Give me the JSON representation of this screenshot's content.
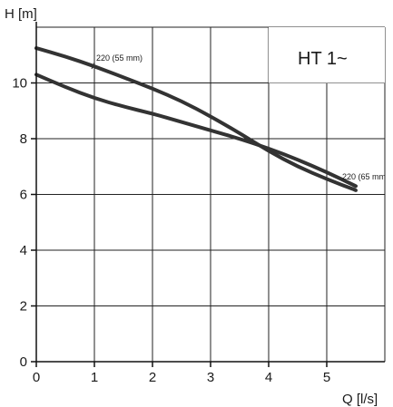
{
  "chart_data": {
    "type": "line",
    "title": "",
    "badge": "HT 1~",
    "xlabel": "Q [l/s]",
    "ylabel": "H [m]",
    "xlim": [
      0,
      6
    ],
    "ylim": [
      0,
      12
    ],
    "x_ticks": [
      0,
      1,
      2,
      3,
      4,
      5
    ],
    "y_ticks": [
      0,
      2,
      4,
      6,
      8,
      10
    ],
    "x_tick_labels": [
      "0",
      "1",
      "2",
      "3",
      "4",
      "5"
    ],
    "y_tick_labels": [
      "0",
      "2",
      "4",
      "6",
      "8",
      "10"
    ],
    "grid": true,
    "series": [
      {
        "name": "220 (55 mm)",
        "x": [
          0,
          0.5,
          1.0,
          1.5,
          2.0,
          2.5,
          3.0,
          3.5,
          4.0,
          4.5,
          5.0,
          5.5
        ],
        "y": [
          11.25,
          10.95,
          10.6,
          10.2,
          9.8,
          9.35,
          8.8,
          8.2,
          7.55,
          7.0,
          6.55,
          6.15
        ]
      },
      {
        "name": "220 (65 mm",
        "x": [
          0,
          0.5,
          1.0,
          1.5,
          2.0,
          2.5,
          3.0,
          3.5,
          4.0,
          4.5,
          5.0,
          5.5
        ],
        "y": [
          10.3,
          9.85,
          9.45,
          9.15,
          8.9,
          8.6,
          8.3,
          8.0,
          7.65,
          7.25,
          6.8,
          6.3
        ]
      }
    ],
    "series_color": "#333333",
    "grid_color": "#222222",
    "axis_color": "#111111"
  }
}
